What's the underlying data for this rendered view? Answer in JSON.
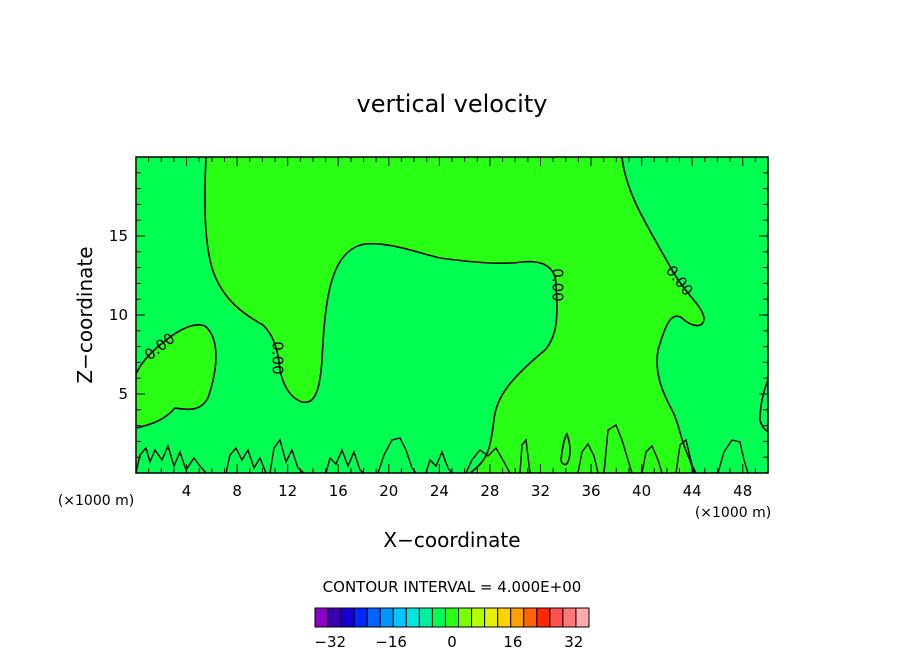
{
  "chart_data": {
    "type": "contour",
    "title": "vertical velocity",
    "xlabel": "X−coordinate",
    "ylabel": "Z−coordinate",
    "x_unit": "(×1000 m)",
    "xlim": [
      0,
      50
    ],
    "ylim": [
      0,
      20
    ],
    "x_ticks": [
      "4",
      "8",
      "12",
      "16",
      "20",
      "24",
      "28",
      "32",
      "36",
      "40",
      "44",
      "48"
    ],
    "x_tick_values": [
      4,
      8,
      12,
      16,
      20,
      24,
      28,
      32,
      36,
      40,
      44,
      48
    ],
    "y_ticks": [
      "5",
      "10",
      "15"
    ],
    "y_tick_values": [
      5,
      10,
      15
    ],
    "contour_label": "0.00",
    "contour_interval_text": "CONTOUR INTERVAL = 4.000E+00",
    "colorbar": {
      "range": [
        -36,
        36
      ],
      "step": 4,
      "tick_labels": [
        "−32",
        "−16",
        "0",
        "16",
        "32"
      ],
      "tick_values": [
        -32,
        -16,
        0,
        16,
        32
      ],
      "colors": [
        "#8c00c8",
        "#3c00b4",
        "#1400d2",
        "#0028ff",
        "#0064ff",
        "#0096ff",
        "#00c8ff",
        "#00e6dc",
        "#00f0a0",
        "#00ff50",
        "#28ff14",
        "#78ff00",
        "#b4ff00",
        "#e6f000",
        "#ffd200",
        "#ffa000",
        "#ff6400",
        "#ff2800",
        "#ff5050",
        "#ff7878",
        "#ffaaaa"
      ]
    },
    "fill_colors": {
      "negative": "#00ff50",
      "positive": "#28ff14"
    }
  }
}
